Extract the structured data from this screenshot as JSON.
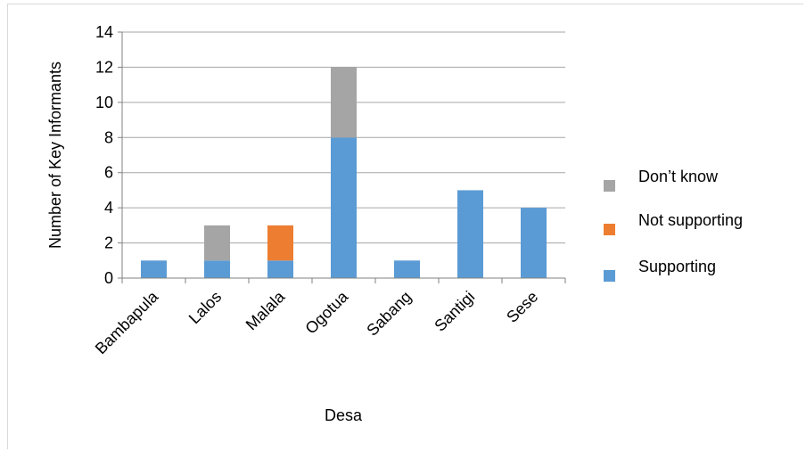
{
  "chart_data": {
    "type": "bar",
    "stacked": true,
    "categories": [
      "Bambapula",
      "Lalos",
      "Malala",
      "Ogotua",
      "Sabang",
      "Santigi",
      "Sese"
    ],
    "series": [
      {
        "name": "Supporting",
        "values": [
          1,
          1,
          1,
          8,
          1,
          5,
          4
        ],
        "color": "#5b9bd5"
      },
      {
        "name": "Not supporting",
        "values": [
          0,
          0,
          2,
          0,
          0,
          0,
          0
        ],
        "color": "#ed7d31"
      },
      {
        "name": "Don’t know",
        "values": [
          0,
          2,
          0,
          4,
          0,
          0,
          0
        ],
        "color": "#a5a5a5"
      }
    ],
    "xlabel": "Desa",
    "ylabel": "Number of Key Informants",
    "ylim": [
      0,
      14
    ],
    "yticks": [
      0,
      2,
      4,
      6,
      8,
      10,
      12,
      14
    ],
    "grid": true,
    "legend_position": "right",
    "legend_order": [
      "Don’t know",
      "Not supporting",
      "Supporting"
    ],
    "gridline_color": "#a6a6a6",
    "axis_color": "#808080"
  }
}
